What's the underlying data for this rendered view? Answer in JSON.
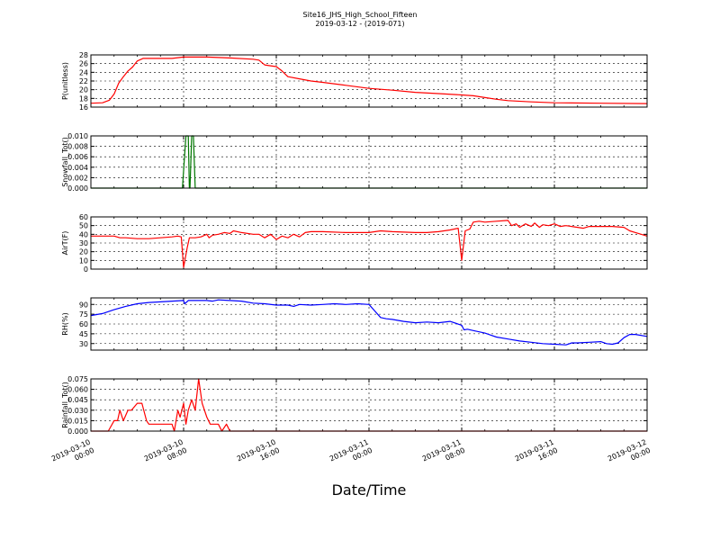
{
  "chart_data": {
    "type": "line",
    "title": "Site16_JHS_High_School_Fifteen",
    "subtitle": "2019-03-12 - (2019-071)",
    "xlabel": "Date/Time",
    "x_ticks": [
      {
        "t": 0,
        "line1": "2019-03-10",
        "line2": "00:00"
      },
      {
        "t": 8,
        "line1": "2019-03-10",
        "line2": "08:00"
      },
      {
        "t": 16,
        "line1": "2019-03-10",
        "line2": "16:00"
      },
      {
        "t": 24,
        "line1": "2019-03-11",
        "line2": "00:00"
      },
      {
        "t": 32,
        "line1": "2019-03-11",
        "line2": "08:00"
      },
      {
        "t": 40,
        "line1": "2019-03-11",
        "line2": "16:00"
      },
      {
        "t": 48,
        "line1": "2019-03-12",
        "line2": "00:00"
      }
    ],
    "xlim_hours": [
      0,
      48
    ],
    "grid": true,
    "panels": [
      {
        "ylabel": "P(unitless)",
        "color": "#ff0000",
        "ylim": [
          16,
          28
        ],
        "yticks": [
          "16",
          "18",
          "20",
          "22",
          "24",
          "26",
          "28"
        ],
        "points": [
          [
            0,
            16.9
          ],
          [
            1,
            17.0
          ],
          [
            1.6,
            17.6
          ],
          [
            2,
            19.0
          ],
          [
            2.4,
            21.5
          ],
          [
            2.8,
            23.0
          ],
          [
            3.2,
            24.3
          ],
          [
            3.6,
            25.2
          ],
          [
            4,
            26.6
          ],
          [
            4.5,
            27.2
          ],
          [
            6,
            27.2
          ],
          [
            7,
            27.2
          ],
          [
            8,
            27.5
          ],
          [
            10,
            27.5
          ],
          [
            12,
            27.3
          ],
          [
            14,
            27.0
          ],
          [
            14.5,
            26.8
          ],
          [
            15,
            25.7
          ],
          [
            15.5,
            25.5
          ],
          [
            16,
            25.3
          ],
          [
            16.5,
            24.3
          ],
          [
            17,
            23.0
          ],
          [
            18,
            22.5
          ],
          [
            19,
            22.0
          ],
          [
            20,
            21.7
          ],
          [
            22,
            21.0
          ],
          [
            24,
            20.3
          ],
          [
            26,
            19.9
          ],
          [
            28,
            19.4
          ],
          [
            30,
            19.1
          ],
          [
            32,
            18.8
          ],
          [
            33,
            18.6
          ],
          [
            34,
            18.2
          ],
          [
            35,
            17.8
          ],
          [
            36,
            17.5
          ],
          [
            38,
            17.2
          ],
          [
            40,
            17.0
          ],
          [
            44,
            16.9
          ],
          [
            48,
            16.8
          ]
        ]
      },
      {
        "ylabel": "Snowfall_Tot()",
        "color": "#007700",
        "ylim": [
          0,
          0.01
        ],
        "yticks": [
          "0.000",
          "0.002",
          "0.004",
          "0.006",
          "0.008",
          "0.010"
        ],
        "points": [
          [
            0,
            0
          ],
          [
            7.9,
            0
          ],
          [
            8.2,
            0.01
          ],
          [
            8.4,
            0.01
          ],
          [
            8.5,
            0
          ],
          [
            8.55,
            0
          ],
          [
            8.7,
            0.01
          ],
          [
            8.85,
            0.01
          ],
          [
            9.0,
            0
          ],
          [
            48,
            0
          ]
        ]
      },
      {
        "ylabel": "AirT(F)",
        "color": "#ff0000",
        "ylim": [
          0,
          60
        ],
        "yticks": [
          "0",
          "10",
          "20",
          "30",
          "40",
          "50",
          "60"
        ],
        "points": [
          [
            0,
            38
          ],
          [
            1,
            38
          ],
          [
            2,
            38
          ],
          [
            2.5,
            36
          ],
          [
            3,
            36
          ],
          [
            4,
            35
          ],
          [
            5,
            35
          ],
          [
            6,
            36
          ],
          [
            7,
            37
          ],
          [
            7.5,
            38
          ],
          [
            7.8,
            37
          ],
          [
            8,
            2
          ],
          [
            8.3,
            24
          ],
          [
            8.5,
            36
          ],
          [
            9,
            36
          ],
          [
            9.5,
            37
          ],
          [
            10,
            40
          ],
          [
            10.2,
            36
          ],
          [
            10.5,
            39
          ],
          [
            11,
            40
          ],
          [
            11.5,
            42
          ],
          [
            12,
            41
          ],
          [
            12.3,
            44
          ],
          [
            13,
            42
          ],
          [
            14,
            40
          ],
          [
            14.5,
            40
          ],
          [
            15,
            36
          ],
          [
            15.5,
            40
          ],
          [
            16,
            34
          ],
          [
            16.5,
            38
          ],
          [
            17,
            36
          ],
          [
            17.5,
            40
          ],
          [
            18,
            37
          ],
          [
            18.5,
            42
          ],
          [
            19,
            43
          ],
          [
            20,
            43
          ],
          [
            22,
            42
          ],
          [
            24,
            42
          ],
          [
            25,
            44
          ],
          [
            26,
            43
          ],
          [
            28,
            42
          ],
          [
            29,
            42
          ],
          [
            30,
            43
          ],
          [
            31,
            45
          ],
          [
            31.7,
            47
          ],
          [
            32,
            10
          ],
          [
            32.3,
            44
          ],
          [
            32.7,
            46
          ],
          [
            33,
            54
          ],
          [
            33.5,
            55
          ],
          [
            34,
            54
          ],
          [
            35,
            55
          ],
          [
            36,
            56
          ],
          [
            36.3,
            50
          ],
          [
            36.7,
            52
          ],
          [
            37,
            48
          ],
          [
            37.5,
            52
          ],
          [
            38,
            49
          ],
          [
            38.3,
            53
          ],
          [
            38.7,
            48
          ],
          [
            39,
            51
          ],
          [
            39.5,
            50
          ],
          [
            40,
            52
          ],
          [
            40.5,
            49
          ],
          [
            41,
            50
          ],
          [
            42,
            48
          ],
          [
            42.5,
            47
          ],
          [
            43,
            49
          ],
          [
            44,
            49
          ],
          [
            45,
            49
          ],
          [
            46,
            48
          ],
          [
            46.5,
            44
          ],
          [
            47,
            42
          ],
          [
            48,
            38
          ]
        ]
      },
      {
        "ylabel": "RH(%)",
        "color": "#0000ff",
        "ylim": [
          20,
          100
        ],
        "yticks": [
          "30",
          "45",
          "60",
          "75",
          "90"
        ],
        "points": [
          [
            0,
            73
          ],
          [
            1,
            76
          ],
          [
            2,
            82
          ],
          [
            3,
            87
          ],
          [
            4,
            91
          ],
          [
            5,
            93
          ],
          [
            6,
            94
          ],
          [
            7,
            95
          ],
          [
            8,
            96
          ],
          [
            8.1,
            91
          ],
          [
            8.4,
            96
          ],
          [
            10,
            96
          ],
          [
            10.5,
            95
          ],
          [
            11,
            97
          ],
          [
            12,
            96
          ],
          [
            13,
            95
          ],
          [
            14,
            92
          ],
          [
            15,
            91
          ],
          [
            16,
            89
          ],
          [
            17,
            89
          ],
          [
            17.5,
            87
          ],
          [
            18,
            90
          ],
          [
            19,
            89
          ],
          [
            20,
            90
          ],
          [
            21,
            91
          ],
          [
            22,
            90
          ],
          [
            23,
            91
          ],
          [
            24,
            90
          ],
          [
            24.5,
            80
          ],
          [
            25,
            70
          ],
          [
            25.5,
            68
          ],
          [
            26,
            67
          ],
          [
            27,
            64
          ],
          [
            28,
            62
          ],
          [
            29,
            63
          ],
          [
            30,
            62
          ],
          [
            31,
            64
          ],
          [
            32,
            58
          ],
          [
            32.2,
            51
          ],
          [
            32.5,
            52
          ],
          [
            33,
            50
          ],
          [
            34,
            46
          ],
          [
            34.5,
            43
          ],
          [
            35,
            40
          ],
          [
            36,
            37
          ],
          [
            37,
            34
          ],
          [
            38,
            32
          ],
          [
            39,
            30
          ],
          [
            40,
            29
          ],
          [
            41,
            28
          ],
          [
            41.5,
            31
          ],
          [
            42,
            31
          ],
          [
            43,
            32
          ],
          [
            44,
            33
          ],
          [
            44.5,
            30
          ],
          [
            45,
            29
          ],
          [
            45.5,
            31
          ],
          [
            46,
            39
          ],
          [
            46.5,
            44
          ],
          [
            47,
            44
          ],
          [
            48,
            41
          ]
        ]
      },
      {
        "ylabel": "Rainfall_Tot()",
        "color": "#ff0000",
        "ylim": [
          0,
          0.075
        ],
        "yticks": [
          "0.000",
          "0.015",
          "0.030",
          "0.045",
          "0.060",
          "0.075"
        ],
        "points": [
          [
            0,
            0
          ],
          [
            1.5,
            0
          ],
          [
            2,
            0.015
          ],
          [
            2.3,
            0.015
          ],
          [
            2.5,
            0.03
          ],
          [
            2.8,
            0.015
          ],
          [
            3.2,
            0.03
          ],
          [
            3.5,
            0.03
          ],
          [
            4,
            0.04
          ],
          [
            4.4,
            0.04
          ],
          [
            4.8,
            0.015
          ],
          [
            5,
            0.01
          ],
          [
            6,
            0.01
          ],
          [
            7,
            0.01
          ],
          [
            7.2,
            0.0
          ],
          [
            7.5,
            0.03
          ],
          [
            7.7,
            0.02
          ],
          [
            8,
            0.04
          ],
          [
            8.2,
            0.01
          ],
          [
            8.4,
            0.03
          ],
          [
            8.7,
            0.045
          ],
          [
            9,
            0.03
          ],
          [
            9.3,
            0.075
          ],
          [
            9.6,
            0.04
          ],
          [
            10,
            0.02
          ],
          [
            10.3,
            0.01
          ],
          [
            11,
            0.01
          ],
          [
            11.3,
            0.0
          ],
          [
            11.7,
            0.01
          ],
          [
            12,
            0.0
          ],
          [
            48,
            0
          ]
        ]
      }
    ]
  }
}
